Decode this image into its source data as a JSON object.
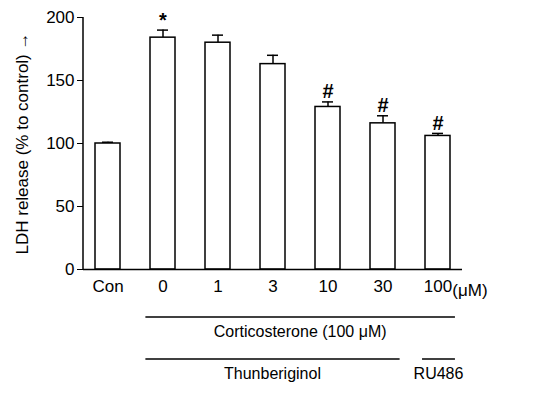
{
  "chart_data": {
    "type": "bar",
    "categories": [
      "Con",
      "0",
      "1",
      "3",
      "10",
      "30",
      "100"
    ],
    "values": [
      100,
      184,
      180,
      163,
      129,
      116,
      106
    ],
    "errors": [
      1,
      6,
      6,
      7,
      4,
      6,
      2
    ],
    "significance": [
      null,
      "*",
      null,
      null,
      "#",
      "#",
      "#"
    ],
    "y_label": "LDH release (% to control)",
    "x_unit": "(μM)",
    "ylim": [
      0,
      200
    ],
    "yticks": [
      0,
      50,
      100,
      150,
      200
    ],
    "color": "#ffffff",
    "groups": [
      {
        "label": "Corticosterone (100 μM)",
        "from": "0",
        "to": "100"
      },
      {
        "label": "Thunberiginol",
        "from": "0",
        "to": "30"
      },
      {
        "label": "RU486",
        "from": "100",
        "to": "100"
      }
    ]
  }
}
